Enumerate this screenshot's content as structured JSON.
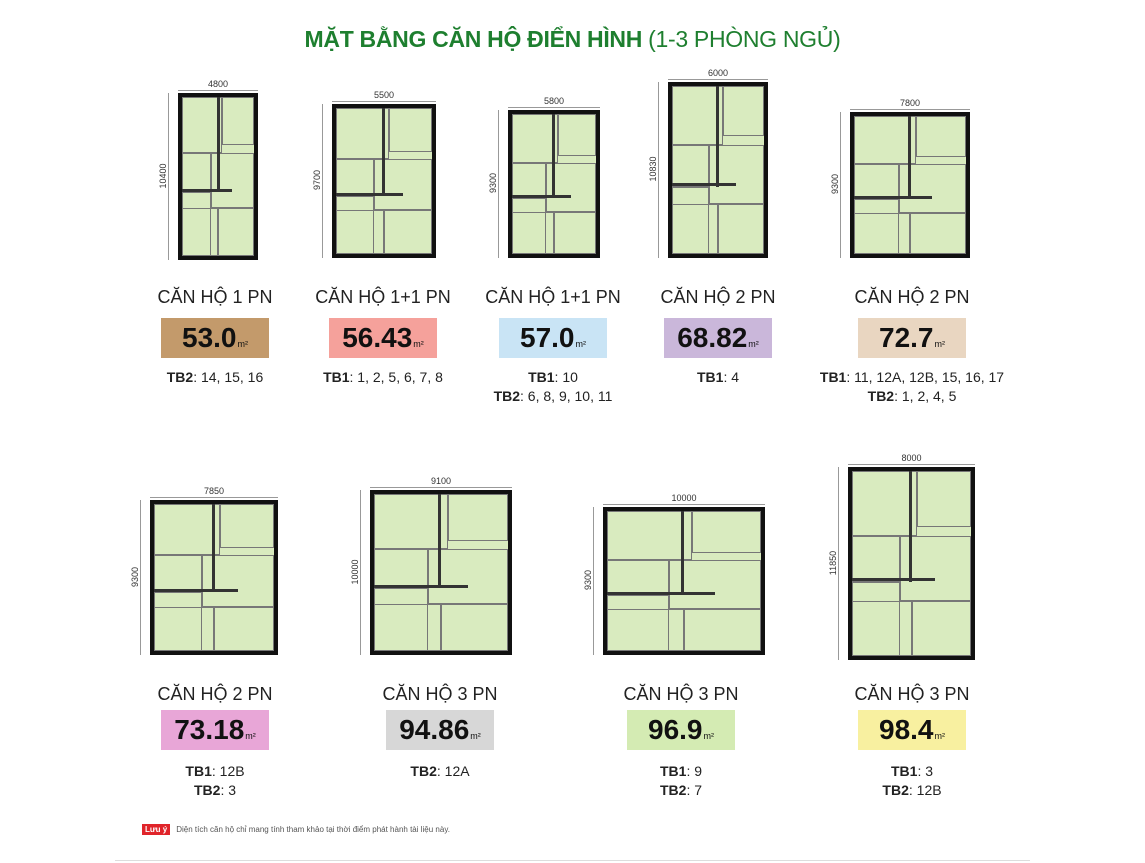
{
  "title": {
    "bold": "MẶT BẰNG CĂN HỘ ĐIỂN HÌNH",
    "light": "(1-3 PHÒNG NGỦ)"
  },
  "units": [
    {
      "type": "CĂN HỘ 1 PN",
      "area": "53.0",
      "unit": "m²",
      "width_dim": "4800",
      "height_dim": "10400",
      "color": "#c39a6b",
      "lines": [
        {
          "label": "TB2",
          "values": ": 14, 15, 16"
        }
      ]
    },
    {
      "type": "CĂN HỘ 1+1 PN",
      "area": "56.43",
      "unit": "m²",
      "width_dim": "5500",
      "height_dim": "9700",
      "color": "#f5a19b",
      "lines": [
        {
          "label": "TB1",
          "values": ": 1, 2, 5, 6, 7, 8"
        }
      ]
    },
    {
      "type": "CĂN HỘ 1+1 PN",
      "area": "57.0",
      "unit": "m²",
      "width_dim": "5800",
      "height_dim": "9300",
      "color": "#c9e4f5",
      "lines": [
        {
          "label": "TB1",
          "values": ": 10"
        },
        {
          "label": "TB2",
          "values": ": 6, 8, 9, 10, 11"
        }
      ]
    },
    {
      "type": "CĂN HỘ 2 PN",
      "area": "68.82",
      "unit": "m²",
      "width_dim": "6000",
      "height_dim": "10830",
      "color": "#cab7da",
      "lines": [
        {
          "label": "TB1",
          "values": ": 4"
        }
      ]
    },
    {
      "type": "CĂN HỘ 2 PN",
      "area": "72.7",
      "unit": "m²",
      "width_dim": "7800",
      "height_dim": "9300",
      "color": "#e9d6c1",
      "lines": [
        {
          "label": "TB1",
          "values": ": 11, 12A, 12B, 15, 16, 17"
        },
        {
          "label": "TB2",
          "values": ": 1, 2, 4, 5"
        }
      ]
    },
    {
      "type": "CĂN HỘ 2 PN",
      "area": "73.18",
      "unit": "m²",
      "width_dim": "7850",
      "height_dim": "9300",
      "color": "#e8a6d7",
      "lines": [
        {
          "label": "TB1",
          "values": ": 12B"
        },
        {
          "label": "TB2",
          "values": ": 3"
        }
      ]
    },
    {
      "type": "CĂN HỘ 3 PN",
      "area": "94.86",
      "unit": "m²",
      "width_dim": "9100",
      "height_dim": "10000",
      "color": "#d7d7d7",
      "lines": [
        {
          "label": "TB2",
          "values": ": 12A"
        }
      ]
    },
    {
      "type": "CĂN HỘ 3 PN",
      "area": "96.9",
      "unit": "m²",
      "width_dim": "10000",
      "height_dim": "9300",
      "color": "#d4ebb3",
      "lines": [
        {
          "label": "TB1",
          "values": ": 9"
        },
        {
          "label": "TB2",
          "values": ": 7"
        }
      ]
    },
    {
      "type": "CĂN HỘ 3 PN",
      "area": "98.4",
      "unit": "m²",
      "width_dim": "8000",
      "height_dim": "11850",
      "color": "#f8f0a0",
      "lines": [
        {
          "label": "TB1",
          "values": ": 3"
        },
        {
          "label": "TB2",
          "values": ": 12B"
        }
      ]
    }
  ],
  "note": {
    "tag": "Lưu ý",
    "text": "Diện tích căn hộ chỉ mang tính tham khảo tại thời điểm phát hành tài liệu này."
  }
}
